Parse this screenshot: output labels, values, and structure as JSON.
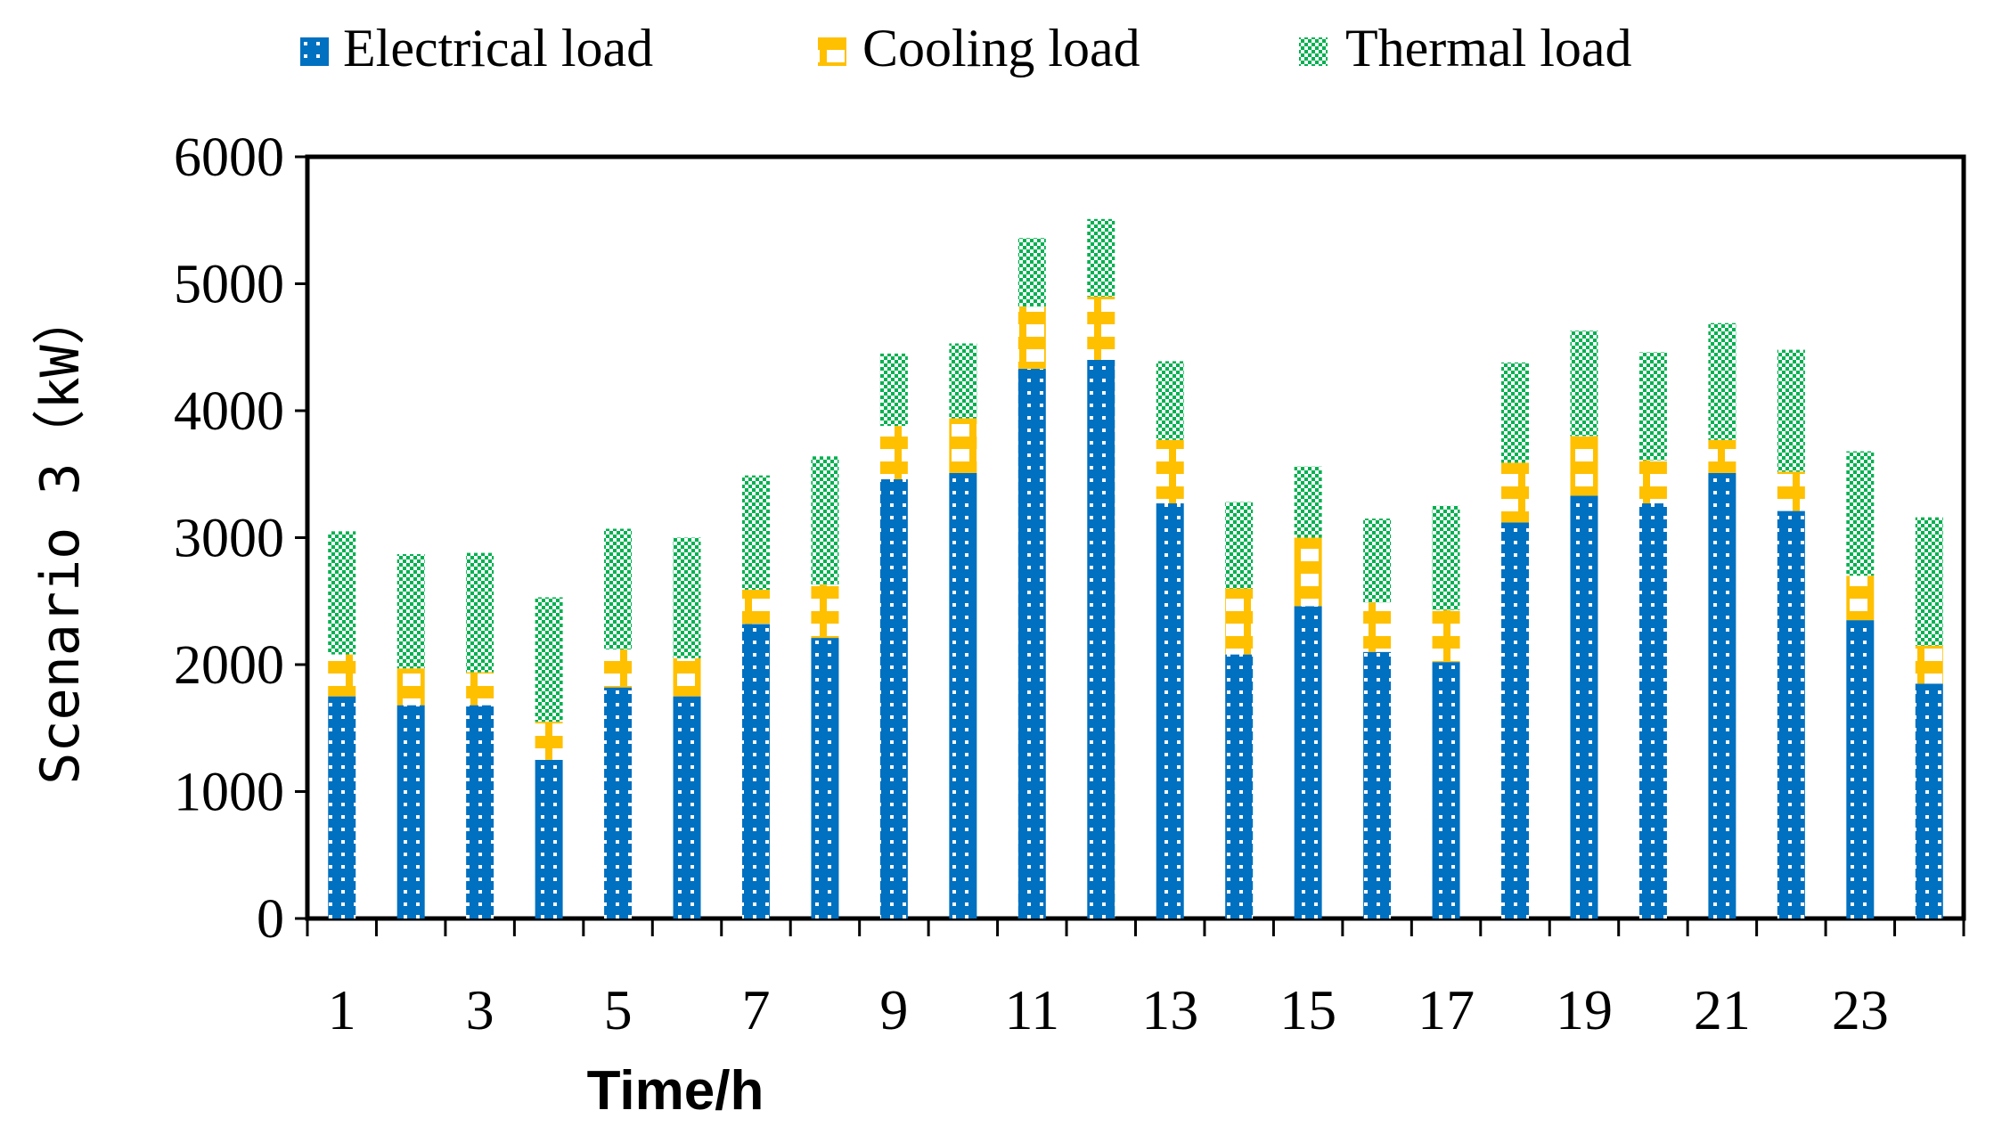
{
  "chart_data": {
    "type": "bar",
    "stacked": true,
    "categories": [
      "1",
      "2",
      "3",
      "4",
      "5",
      "6",
      "7",
      "8",
      "9",
      "10",
      "11",
      "12",
      "13",
      "14",
      "15",
      "16",
      "17",
      "18",
      "19",
      "20",
      "21",
      "22",
      "23",
      "24"
    ],
    "x_tick_labels": [
      "1",
      "3",
      "5",
      "7",
      "9",
      "11",
      "13",
      "15",
      "17",
      "19",
      "21",
      "23"
    ],
    "series": [
      {
        "name": "Electrical load",
        "color": "#0070C0",
        "values": [
          1750,
          1680,
          1680,
          1250,
          1820,
          1750,
          2320,
          2210,
          3460,
          3510,
          4330,
          4400,
          3270,
          2080,
          2460,
          2100,
          2020,
          3120,
          3330,
          3270,
          3510,
          3210,
          2350,
          1850
        ]
      },
      {
        "name": "Cooling load",
        "color": "#FFC000",
        "values": [
          330,
          290,
          260,
          300,
          300,
          300,
          270,
          420,
          420,
          430,
          490,
          500,
          500,
          520,
          540,
          390,
          410,
          470,
          470,
          340,
          260,
          310,
          350,
          300
        ]
      },
      {
        "name": "Thermal load",
        "color": "#00B050",
        "values": [
          970,
          900,
          940,
          980,
          950,
          950,
          900,
          1010,
          570,
          590,
          540,
          610,
          620,
          680,
          560,
          660,
          820,
          790,
          830,
          850,
          920,
          960,
          980,
          1010
        ]
      }
    ],
    "xlabel": "Time/h",
    "ylabel": "Scenario 3（kW）",
    "ylim": [
      0,
      6000
    ],
    "yticks": [
      "0",
      "1000",
      "2000",
      "3000",
      "4000",
      "5000",
      "6000"
    ],
    "grid": false,
    "legend_position": "top"
  }
}
